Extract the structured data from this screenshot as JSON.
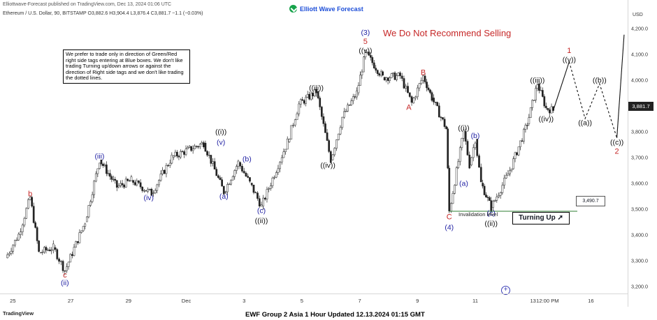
{
  "header": {
    "published_by": "Elliottwave-Forecast published on TradingView.com, Dec 13, 2024 01:06 UTC",
    "brand": "Elliott Wave Forecast",
    "instrument": "Ethereum / U.S. Dollar, 90, BITSTAMP  O3,882.6  H3,904.4  L3,876.4  C3,881.7  −1.1 (−0.03%)",
    "currency": "USD"
  },
  "headline": "We Do Not Recommend Selling",
  "note": "We prefer to trade only in direction of Green/Red right side tags entering at Blue boxes. We don't like trading Turning up/down arrows or against the direction of Right side tags and we don't like trading the dotted lines.",
  "current_price": "3,881.7",
  "invalidation": {
    "label": "Invalidation level",
    "value": "3,490.7"
  },
  "turning_button": "Turning Up",
  "turning_icon": "arrow-up-right-icon",
  "footer": "EWF Group 2 Asia 1 Hour Updated 12.13.2024 01:15 GMT",
  "tradingview_label": "TradingView",
  "colors": {
    "blue": "#1f1fa3",
    "red": "#c62828",
    "black": "#111111",
    "green": "#2e7d32",
    "candle_up": "#222222",
    "candle_down": "#222222"
  },
  "chart_data": {
    "type": "line",
    "ylim": [
      3180,
      4250
    ],
    "price_ticks": [
      4200,
      4100,
      4000,
      3900,
      3800,
      3700,
      3600,
      3500,
      3400,
      3300,
      3200
    ],
    "price_tick_labels": [
      "4,200.0",
      "4,100.0",
      "4,000.0",
      "3,900.0",
      "3,800.0",
      "3,700.0",
      "3,600.0",
      "3,500.0",
      "3,400.0",
      "3,300.0",
      "3,200.0"
    ],
    "time_tick_labels": [
      "25",
      "27",
      "29",
      "Dec",
      "3",
      "5",
      "7",
      "9",
      "11",
      "13",
      "12:00 PM",
      "16"
    ],
    "time_ticks_day": [
      0,
      2,
      4,
      6,
      8,
      10,
      12,
      14,
      16,
      18,
      18.5,
      20
    ],
    "xlim": [
      -0.3,
      21.2
    ],
    "price_path": [
      [
        -0.25,
        3310
      ],
      [
        0.2,
        3400
      ],
      [
        0.6,
        3545
      ],
      [
        0.9,
        3330
      ],
      [
        1.4,
        3350
      ],
      [
        1.8,
        3260
      ],
      [
        2.5,
        3450
      ],
      [
        3.0,
        3690
      ],
      [
        3.6,
        3585
      ],
      [
        4.1,
        3610
      ],
      [
        4.8,
        3560
      ],
      [
        5.5,
        3700
      ],
      [
        6.6,
        3755
      ],
      [
        7.3,
        3565
      ],
      [
        7.8,
        3680
      ],
      [
        8.2,
        3600
      ],
      [
        8.6,
        3510
      ],
      [
        9.5,
        3760
      ],
      [
        9.9,
        3905
      ],
      [
        10.5,
        3955
      ],
      [
        11.0,
        3690
      ],
      [
        11.4,
        3855
      ],
      [
        11.9,
        3950
      ],
      [
        12.2,
        4105
      ],
      [
        12.8,
        4010
      ],
      [
        13.4,
        4015
      ],
      [
        13.8,
        3910
      ],
      [
        14.2,
        4015
      ],
      [
        14.5,
        3930
      ],
      [
        15.0,
        3810
      ],
      [
        15.1,
        3490
      ],
      [
        15.6,
        3800
      ],
      [
        15.8,
        3670
      ],
      [
        16.0,
        3770
      ],
      [
        16.2,
        3600
      ],
      [
        16.55,
        3505
      ],
      [
        17.2,
        3650
      ],
      [
        17.8,
        3830
      ],
      [
        18.15,
        3985
      ],
      [
        18.45,
        3890
      ],
      [
        18.7,
        3882
      ]
    ],
    "projection_solid": [
      [
        18.7,
        3882
      ],
      [
        19.25,
        4070
      ]
    ],
    "projection_dotted": [
      [
        19.25,
        4070
      ],
      [
        19.8,
        3850
      ],
      [
        20.3,
        3985
      ],
      [
        20.9,
        3775
      ]
    ],
    "projection_final": [
      [
        20.9,
        3775
      ],
      [
        21.15,
        4175
      ]
    ],
    "wave_labels": [
      {
        "text": "b",
        "x": 0.6,
        "y": 3560,
        "color": "red",
        "dir": "up"
      },
      {
        "text": "c",
        "x": 1.8,
        "y": 3245,
        "color": "red",
        "dir": "down"
      },
      {
        "text": "(ii)",
        "x": 1.8,
        "y": 3215,
        "color": "blue",
        "dir": "down2"
      },
      {
        "text": "(iii)",
        "x": 3.0,
        "y": 3705,
        "color": "blue",
        "dir": "up"
      },
      {
        "text": "(iv)",
        "x": 4.7,
        "y": 3545,
        "color": "blue",
        "dir": "down"
      },
      {
        "text": "(v)",
        "x": 7.2,
        "y": 3760,
        "color": "blue",
        "dir": "up"
      },
      {
        "text": "((i))",
        "x": 7.2,
        "y": 3800,
        "color": "black",
        "dir": "up"
      },
      {
        "text": "(a)",
        "x": 7.3,
        "y": 3550,
        "color": "blue",
        "dir": "down"
      },
      {
        "text": "(b)",
        "x": 8.1,
        "y": 3695,
        "color": "blue",
        "dir": "up"
      },
      {
        "text": "(c)",
        "x": 8.6,
        "y": 3495,
        "color": "blue",
        "dir": "down"
      },
      {
        "text": "((ii))",
        "x": 8.6,
        "y": 3455,
        "color": "black",
        "dir": "down"
      },
      {
        "text": "((iii))",
        "x": 10.5,
        "y": 3970,
        "color": "black",
        "dir": "up"
      },
      {
        "text": "((iv))",
        "x": 10.9,
        "y": 3670,
        "color": "black",
        "dir": "down"
      },
      {
        "text": "(3)",
        "x": 12.2,
        "y": 4185,
        "color": "blue",
        "dir": "up"
      },
      {
        "text": "5",
        "x": 12.2,
        "y": 4150,
        "color": "red",
        "dir": "up"
      },
      {
        "text": "((v))",
        "x": 12.2,
        "y": 4115,
        "color": "black",
        "dir": "up"
      },
      {
        "text": "A",
        "x": 13.7,
        "y": 3895,
        "color": "red",
        "dir": "down"
      },
      {
        "text": "B",
        "x": 14.2,
        "y": 4030,
        "color": "red",
        "dir": "up"
      },
      {
        "text": "C",
        "x": 15.1,
        "y": 3470,
        "color": "red",
        "dir": "down"
      },
      {
        "text": "(4)",
        "x": 15.1,
        "y": 3430,
        "color": "blue",
        "dir": "down"
      },
      {
        "text": "((i))",
        "x": 15.6,
        "y": 3815,
        "color": "black",
        "dir": "up"
      },
      {
        "text": "(b)",
        "x": 16.0,
        "y": 3785,
        "color": "blue",
        "dir": "up"
      },
      {
        "text": "(a)",
        "x": 15.6,
        "y": 3600,
        "color": "blue",
        "dir": "down"
      },
      {
        "text": "(c)",
        "x": 16.55,
        "y": 3485,
        "color": "blue",
        "dir": "down"
      },
      {
        "text": "((ii))",
        "x": 16.55,
        "y": 3445,
        "color": "black",
        "dir": "down"
      },
      {
        "text": "((iii))",
        "x": 18.15,
        "y": 4000,
        "color": "black",
        "dir": "up"
      },
      {
        "text": "((iv))",
        "x": 18.45,
        "y": 3850,
        "color": "black",
        "dir": "down"
      },
      {
        "text": "1",
        "x": 19.25,
        "y": 4115,
        "color": "red",
        "dir": "up"
      },
      {
        "text": "((v))",
        "x": 19.25,
        "y": 4080,
        "color": "black",
        "dir": "up"
      },
      {
        "text": "((a))",
        "x": 19.8,
        "y": 3835,
        "color": "black",
        "dir": "down"
      },
      {
        "text": "((b))",
        "x": 20.3,
        "y": 4000,
        "color": "black",
        "dir": "up"
      },
      {
        "text": "((c))",
        "x": 20.9,
        "y": 3760,
        "color": "black",
        "dir": "down"
      },
      {
        "text": "2",
        "x": 20.9,
        "y": 3725,
        "color": "red",
        "dir": "down"
      }
    ],
    "invalidation_level": 3490.7,
    "invalidation_from_day": 15.1
  }
}
